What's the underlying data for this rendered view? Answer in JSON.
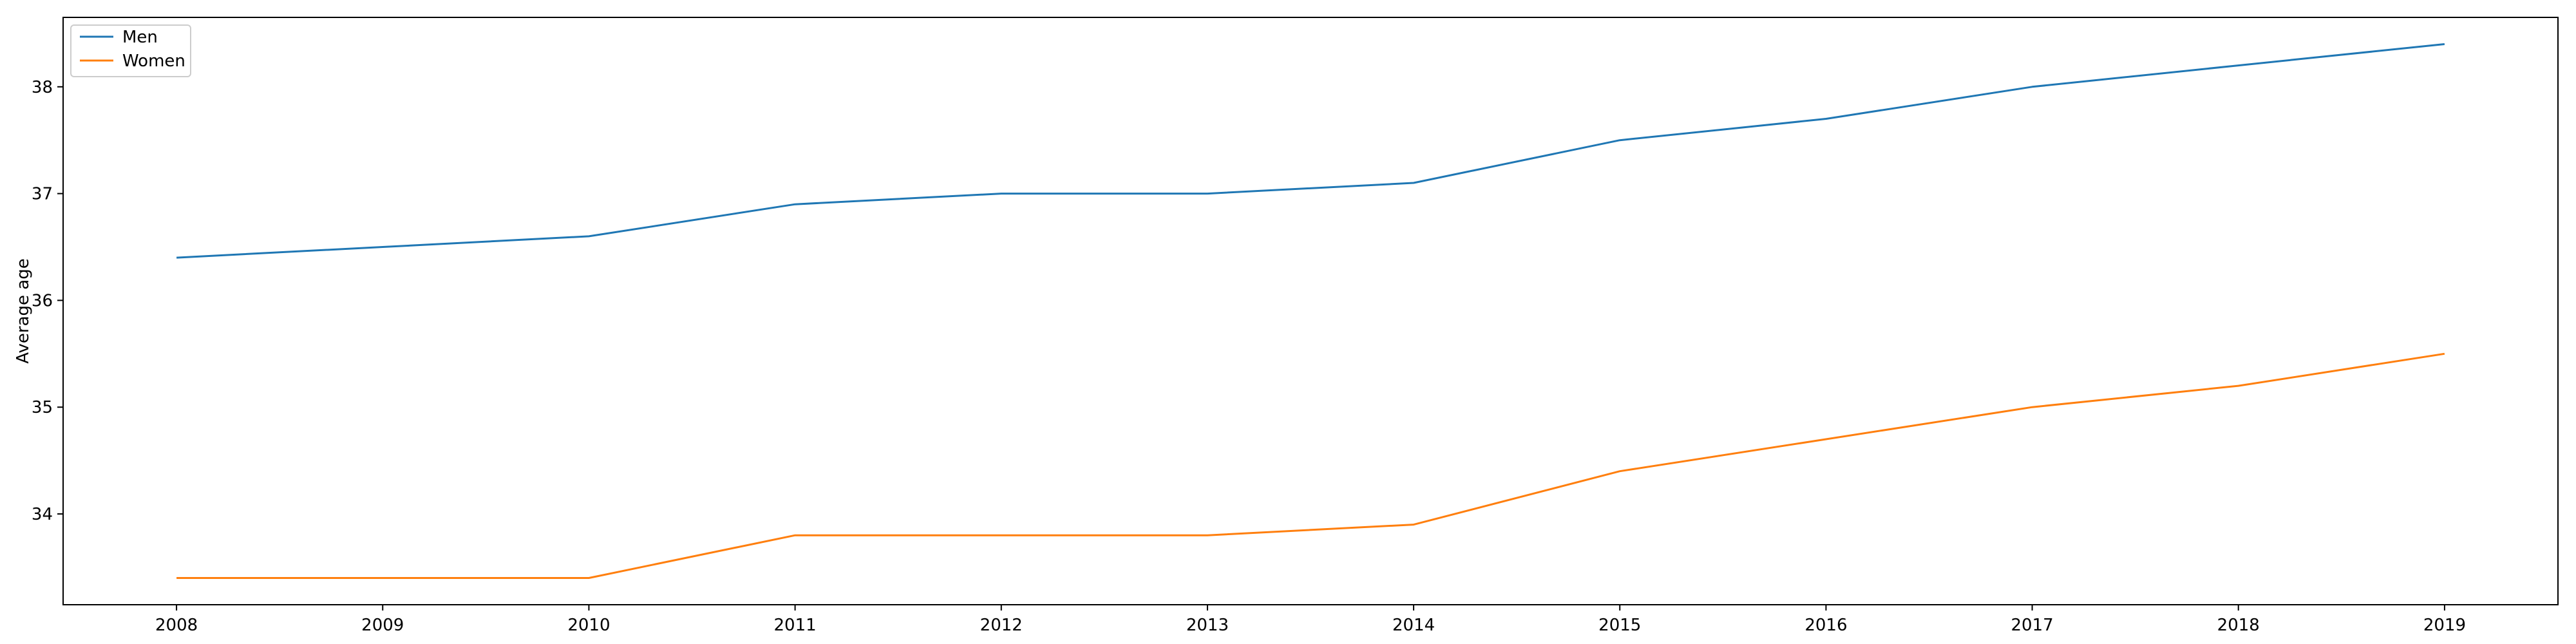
{
  "chart_data": {
    "type": "line",
    "title": "",
    "xlabel": "",
    "ylabel": "Average age",
    "x": [
      2008,
      2009,
      2010,
      2011,
      2012,
      2013,
      2014,
      2015,
      2016,
      2017,
      2018,
      2019
    ],
    "x_ticks": [
      "2008",
      "2009",
      "2010",
      "2011",
      "2012",
      "2013",
      "2014",
      "2015",
      "2016",
      "2017",
      "2018",
      "2019"
    ],
    "y_ticks": [
      34,
      35,
      36,
      37,
      38
    ],
    "xlim": [
      2007.45,
      2019.55
    ],
    "ylim": [
      33.15,
      38.65
    ],
    "grid": false,
    "legend_position": "top-left",
    "series": [
      {
        "name": "Men",
        "color": "#1f77b4",
        "values": [
          36.4,
          36.5,
          36.6,
          36.9,
          37.0,
          37.0,
          37.1,
          37.5,
          37.7,
          38.0,
          38.2,
          38.4
        ]
      },
      {
        "name": "Women",
        "color": "#ff7f0e",
        "values": [
          33.4,
          33.4,
          33.4,
          33.8,
          33.8,
          33.8,
          33.9,
          34.4,
          34.7,
          35.0,
          35.2,
          35.5
        ]
      }
    ]
  }
}
